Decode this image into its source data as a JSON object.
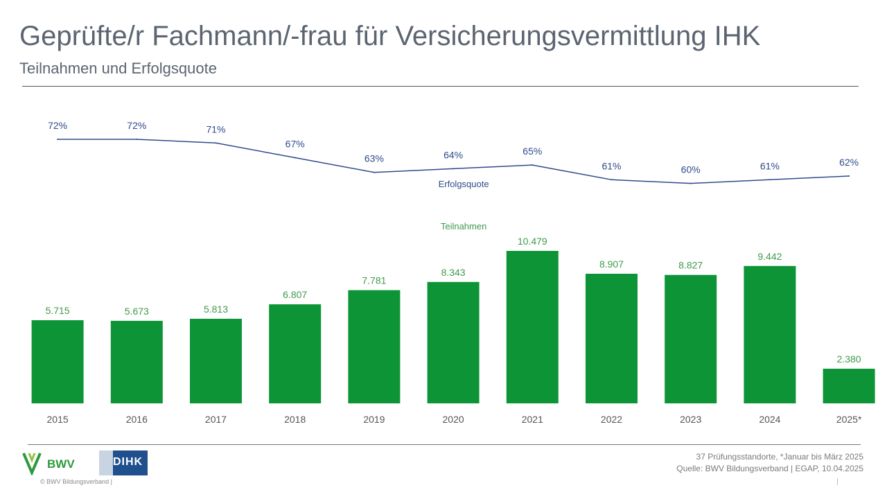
{
  "header": {
    "title": "Geprüfte/r Fachmann/-frau für Versicherungsvermittlung IHK",
    "subtitle": "Teilnahmen und Erfolgsquote"
  },
  "chart_data": {
    "type": "bar",
    "categories": [
      "2015",
      "2016",
      "2017",
      "2018",
      "2019",
      "2020",
      "2021",
      "2022",
      "2023",
      "2024",
      "2025*"
    ],
    "series": [
      {
        "name": "Teilnahmen",
        "type": "bar",
        "values": [
          5715,
          5673,
          5813,
          6807,
          7781,
          8343,
          10479,
          8907,
          8827,
          9442,
          2380
        ],
        "labels": [
          "5.715",
          "5.673",
          "5.813",
          "6.807",
          "7.781",
          "8.343",
          "10.479",
          "8.907",
          "8.827",
          "9.442",
          "2.380"
        ],
        "color": "#0d9436"
      },
      {
        "name": "Erfolgsquote",
        "type": "line",
        "values": [
          72,
          72,
          71,
          67,
          63,
          64,
          65,
          61,
          60,
          61,
          62
        ],
        "labels": [
          "72%",
          "72%",
          "71%",
          "67%",
          "63%",
          "64%",
          "65%",
          "61%",
          "60%",
          "61%",
          "62%"
        ],
        "color": "#2e4a8c"
      }
    ],
    "grid": false
  },
  "footer": {
    "bwv_logo_text": "BWV",
    "dihk_logo_text": "DIHK",
    "copyright": "© BWV Bildungsverband |",
    "note_line1": "37 Prüfungsstandorte, *Januar bis März 2025",
    "note_line2": "Quelle: BWV Bildungsverband | EGAP, 10.04.2025"
  }
}
